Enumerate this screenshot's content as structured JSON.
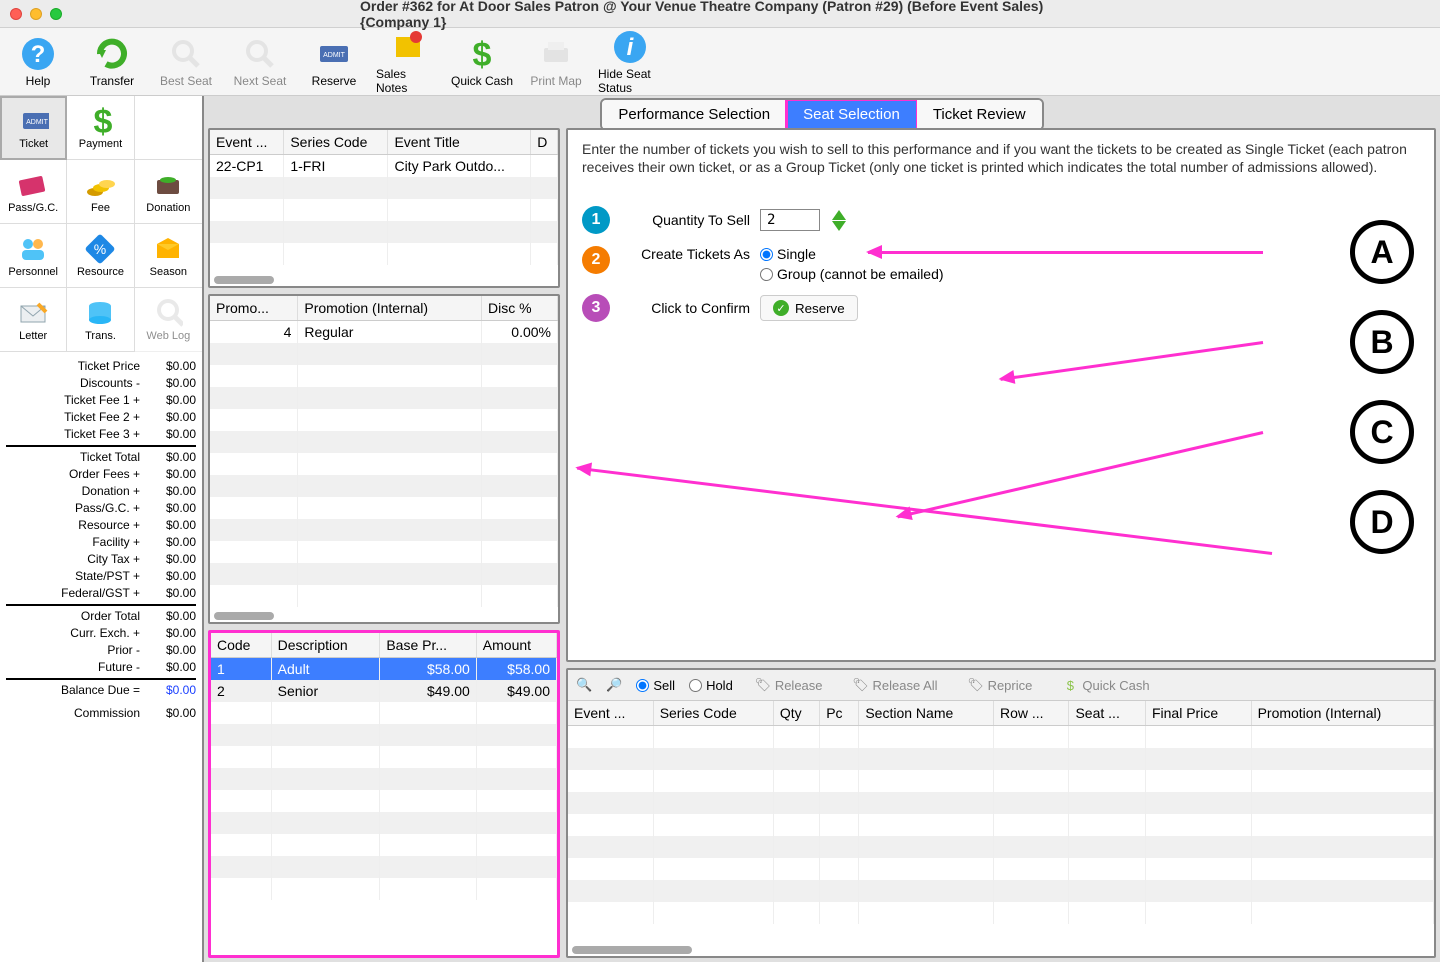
{
  "window": {
    "title": "Order #362 for At Door Sales Patron @ Your Venue Theatre Company (Patron #29) (Before Event Sales) {Company 1}"
  },
  "toolbar": [
    {
      "name": "help",
      "label": "Help",
      "color": "#3aa6f2",
      "disabled": false
    },
    {
      "name": "transfer",
      "label": "Transfer",
      "color": "#3fae29",
      "disabled": false
    },
    {
      "name": "best-seat",
      "label": "Best Seat",
      "color": "#d0d0d0",
      "disabled": true
    },
    {
      "name": "next-seat",
      "label": "Next Seat",
      "color": "#d0d0d0",
      "disabled": true
    },
    {
      "name": "reserve",
      "label": "Reserve",
      "color": "#4a6fb3",
      "disabled": false
    },
    {
      "name": "sales-notes",
      "label": "Sales Notes",
      "color": "#f2c200",
      "disabled": false
    },
    {
      "name": "quick-cash",
      "label": "Quick Cash",
      "color": "#3fae29",
      "disabled": false
    },
    {
      "name": "print-map",
      "label": "Print Map",
      "color": "#d0d0d0",
      "disabled": true
    },
    {
      "name": "hide-seat",
      "label": "Hide Seat Status",
      "color": "#3aa6f2",
      "disabled": false
    }
  ],
  "sidebar": {
    "items": [
      {
        "name": "ticket",
        "label": "Ticket",
        "selected": true
      },
      {
        "name": "payment",
        "label": "Payment"
      },
      {
        "name": "blank1",
        "label": ""
      },
      {
        "name": "pass-gc",
        "label": "Pass/G.C."
      },
      {
        "name": "fee",
        "label": "Fee"
      },
      {
        "name": "donation",
        "label": "Donation"
      },
      {
        "name": "personnel",
        "label": "Personnel"
      },
      {
        "name": "resource",
        "label": "Resource"
      },
      {
        "name": "season",
        "label": "Season"
      },
      {
        "name": "letter",
        "label": "Letter"
      },
      {
        "name": "trans",
        "label": "Trans."
      },
      {
        "name": "weblog",
        "label": "Web Log",
        "disabled": true
      }
    ]
  },
  "summary": {
    "rows": [
      {
        "label": "Ticket Price",
        "value": "$0.00"
      },
      {
        "label": "Discounts -",
        "value": "$0.00"
      },
      {
        "label": "Ticket Fee 1 +",
        "value": "$0.00"
      },
      {
        "label": "Ticket Fee 2 +",
        "value": "$0.00"
      },
      {
        "label": "Ticket Fee 3 +",
        "value": "$0.00"
      }
    ],
    "ticket_total": {
      "label": "Ticket Total",
      "value": "$0.00"
    },
    "rows2": [
      {
        "label": "Order Fees +",
        "value": "$0.00"
      },
      {
        "label": "Donation +",
        "value": "$0.00"
      },
      {
        "label": "Pass/G.C. +",
        "value": "$0.00"
      },
      {
        "label": "Resource +",
        "value": "$0.00"
      },
      {
        "label": "Facility +",
        "value": "$0.00"
      }
    ],
    "rows3": [
      {
        "label": "City Tax +",
        "value": "$0.00"
      },
      {
        "label": "State/PST +",
        "value": "$0.00"
      },
      {
        "label": "Federal/GST +",
        "value": "$0.00"
      }
    ],
    "order_total": {
      "label": "Order Total",
      "value": "$0.00"
    },
    "rows4": [
      {
        "label": "Curr. Exch. +",
        "value": "$0.00"
      },
      {
        "label": "Prior -",
        "value": "$0.00"
      },
      {
        "label": "Future -",
        "value": "$0.00"
      }
    ],
    "balance_due": {
      "label": "Balance Due =",
      "value": "$0.00"
    },
    "commission": {
      "label": "Commission",
      "value": "$0.00"
    }
  },
  "tabs": [
    {
      "name": "performance",
      "label": "Performance Selection",
      "active": false
    },
    {
      "name": "seat",
      "label": "Seat Selection",
      "active": true,
      "highlighted": true
    },
    {
      "name": "review",
      "label": "Ticket Review",
      "active": false
    }
  ],
  "event_table": {
    "columns": [
      "Event ...",
      "Series Code",
      "Event Title",
      "D"
    ],
    "rows": [
      [
        "22-CP1",
        "1-FRI",
        "City Park Outdo...",
        ""
      ]
    ]
  },
  "promo_table": {
    "columns": [
      "Promo...",
      "Promotion (Internal)",
      "Disc %"
    ],
    "rows": [
      [
        "4",
        "Regular",
        "0.00%"
      ]
    ]
  },
  "price_table": {
    "columns": [
      "Code",
      "Description",
      "Base Pr...",
      "Amount"
    ],
    "rows": [
      {
        "cells": [
          "1",
          "Adult",
          "$58.00",
          "$58.00"
        ],
        "selected": true
      },
      {
        "cells": [
          "2",
          "Senior",
          "$49.00",
          "$49.00"
        ],
        "selected": false
      }
    ]
  },
  "form": {
    "instructions": "Enter the number of tickets you wish to sell to this performance and if you want the tickets to be created as Single Ticket (each patron receives their own ticket, or as a Group Ticket (only one ticket is printed which indicates the total number of admissions allowed).",
    "qty_label": "Quantity To Sell",
    "qty_value": "2",
    "create_label": "Create Tickets As",
    "opt_single": "Single",
    "opt_group": "Group (cannot be emailed)",
    "confirm_label": "Click to Confirm",
    "reserve_btn": "Reserve"
  },
  "callouts": [
    "A",
    "B",
    "C",
    "D"
  ],
  "lower_toolbar": {
    "sell": "Sell",
    "hold": "Hold",
    "release": "Release",
    "release_all": "Release All",
    "reprice": "Reprice",
    "quick_cash": "Quick Cash"
  },
  "lower_table": {
    "columns": [
      "Event ...",
      "Series Code",
      "Qty",
      "Pc",
      "Section Name",
      "Row ...",
      "Seat ...",
      "Final Price",
      "Promotion (Internal)"
    ]
  },
  "colors": {
    "accent": "#3d7eff",
    "highlight": "#ff2fd0",
    "green": "#3fae29"
  }
}
